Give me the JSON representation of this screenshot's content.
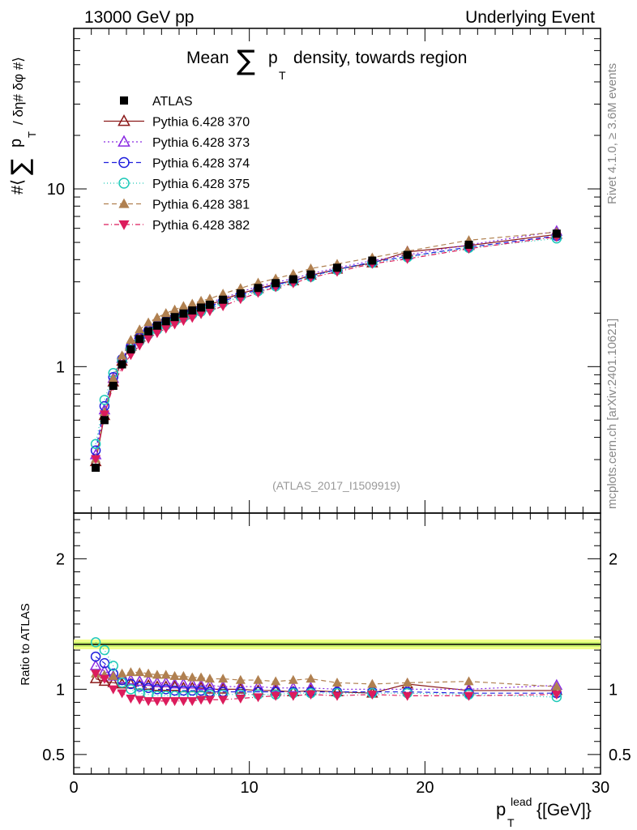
{
  "header": {
    "left": "13000 GeV pp",
    "right": "Underlying Event"
  },
  "side_labels": {
    "rivet": "Rivet 4.1.0, ≥ 3.6M events",
    "mcplots": "mcplots.cern.ch [arXiv:2401.10621]"
  },
  "chart_data": {
    "type": "scatter",
    "title": "Mean ∑ p_T density, towards region",
    "title_parts": {
      "mean": "Mean",
      "sum": "∑",
      "p": "p",
      "sub": "T",
      "rest": "density, towards region"
    },
    "analysis_label": "(ATLAS_2017_I1509919)",
    "ylabel": "#⟨ ∑ p_T / δη# δφ #⟩",
    "ylabel_parts": {
      "open": "#⟨",
      "sum": "∑",
      "p": "p",
      "sub": "T",
      "rest": "/ δη# δφ #⟩"
    },
    "xlabel": "p_T^lead {[GeV]}",
    "xlabel_parts": {
      "p": "p",
      "sub": "T",
      "sup": "lead",
      "unit": "{[GeV]}"
    },
    "ratio_ylabel": "Ratio to ATLAS",
    "xlim": [
      0,
      30
    ],
    "ylim": [
      0.15,
      80
    ],
    "ratio_ylim": [
      0.35,
      2.35
    ],
    "x_ticks": [
      {
        "value": 0,
        "label": "0"
      },
      {
        "value": 10,
        "label": "10"
      },
      {
        "value": 20,
        "label": "20"
      },
      {
        "value": 30,
        "label": "30"
      }
    ],
    "y_ticks": [
      {
        "value": 1,
        "label": "1"
      },
      {
        "value": 10,
        "label": "10"
      }
    ],
    "ratio_ticks": [
      {
        "value": 0.5,
        "label": "0.5"
      },
      {
        "value": 1,
        "label": "1"
      },
      {
        "value": 2,
        "label": "2"
      }
    ],
    "x": [
      1.25,
      1.75,
      2.25,
      2.75,
      3.25,
      3.75,
      4.25,
      4.75,
      5.25,
      5.75,
      6.25,
      6.75,
      7.25,
      7.75,
      8.5,
      9.5,
      10.5,
      11.5,
      12.5,
      13.5,
      15.0,
      17.0,
      19.0,
      22.5,
      27.5
    ],
    "reference": {
      "name": "ATLAS",
      "color": "#000000",
      "values": [
        0.27,
        0.5,
        0.78,
        1.03,
        1.25,
        1.43,
        1.58,
        1.7,
        1.8,
        1.9,
        1.99,
        2.07,
        2.15,
        2.23,
        2.38,
        2.58,
        2.77,
        2.95,
        3.1,
        3.3,
        3.6,
        3.95,
        4.25,
        4.85,
        5.6
      ]
    },
    "series": [
      {
        "name": "Pythia 6.428 370",
        "color": "#8b1a1a",
        "marker": "triangle-open",
        "dash": "",
        "ratios": [
          1.08,
          1.06,
          1.05,
          1.04,
          1.04,
          1.03,
          1.03,
          1.02,
          1.02,
          1.02,
          1.01,
          1.01,
          1.01,
          1.0,
          1.0,
          1.0,
          0.99,
          0.99,
          0.98,
          0.99,
          0.98,
          0.97,
          1.04,
          0.99,
          0.99
        ]
      },
      {
        "name": "Pythia 6.428 373",
        "color": "#8a2be2",
        "marker": "triangle-open",
        "dash": "2,3",
        "ratios": [
          1.18,
          1.14,
          1.1,
          1.08,
          1.07,
          1.06,
          1.06,
          1.05,
          1.05,
          1.04,
          1.04,
          1.04,
          1.03,
          1.03,
          1.02,
          1.02,
          1.02,
          1.01,
          1.01,
          1.01,
          1.0,
          1.0,
          1.0,
          1.0,
          1.03
        ]
      },
      {
        "name": "Pythia 6.428 374",
        "color": "#1f1fdd",
        "marker": "circle-open",
        "dash": "6,4",
        "ratios": [
          1.25,
          1.2,
          1.12,
          1.07,
          1.04,
          1.02,
          1.01,
          1.0,
          1.0,
          0.99,
          0.99,
          0.99,
          0.99,
          0.98,
          0.98,
          0.98,
          0.98,
          0.98,
          0.98,
          0.98,
          0.98,
          0.98,
          0.98,
          0.97,
          0.97
        ]
      },
      {
        "name": "Pythia 6.428 375",
        "color": "#1ec9b8",
        "marker": "circle-open",
        "dash": "1,3",
        "ratios": [
          1.36,
          1.3,
          1.18,
          1.05,
          1.0,
          0.97,
          0.96,
          0.95,
          0.95,
          0.95,
          0.95,
          0.95,
          0.95,
          0.96,
          0.96,
          0.96,
          0.96,
          0.96,
          0.97,
          0.97,
          0.97,
          0.97,
          0.97,
          0.96,
          0.94
        ]
      },
      {
        "name": "Pythia 6.428 381",
        "color": "#b08050",
        "marker": "triangle-filled",
        "dash": "6,4",
        "ratios": [
          1.12,
          1.11,
          1.1,
          1.12,
          1.13,
          1.13,
          1.12,
          1.11,
          1.11,
          1.1,
          1.1,
          1.09,
          1.09,
          1.08,
          1.08,
          1.07,
          1.07,
          1.06,
          1.07,
          1.08,
          1.05,
          1.04,
          1.05,
          1.06,
          1.02
        ]
      },
      {
        "name": "Pythia 6.428 382",
        "color": "#dc1c5c",
        "marker": "triangle-down-filled",
        "dash": "6,3,1,3",
        "ratios": [
          1.12,
          1.08,
          1.0,
          0.97,
          0.93,
          0.92,
          0.91,
          0.91,
          0.91,
          0.91,
          0.91,
          0.91,
          0.92,
          0.92,
          0.92,
          0.93,
          0.94,
          0.95,
          0.95,
          0.96,
          0.95,
          0.96,
          0.95,
          0.95,
          0.96
        ]
      }
    ],
    "legend_position": "top-left"
  }
}
